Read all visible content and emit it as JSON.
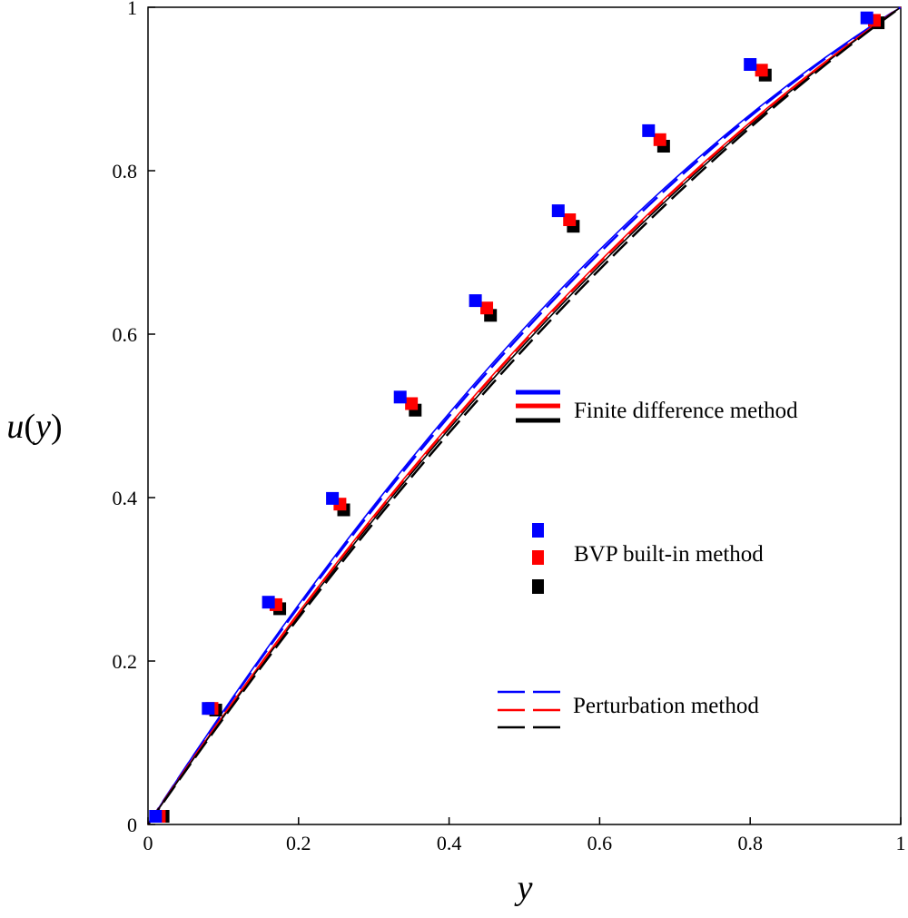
{
  "chart_data": {
    "type": "line",
    "xlabel": "y",
    "ylabel_func": "u",
    "ylabel_arg": "y",
    "xlim": [
      0,
      1
    ],
    "ylim": [
      0,
      1
    ],
    "xticks": [
      0,
      0.2,
      0.4,
      0.6,
      0.8,
      1
    ],
    "xtick_labels": [
      "0",
      "0.2",
      "0.4",
      "0.6",
      "0.8",
      "1"
    ],
    "yticks": [
      0,
      0.2,
      0.4,
      0.6,
      0.8,
      1
    ],
    "ytick_labels": [
      "0",
      "0.2",
      "0.4",
      "0.6",
      "0.8",
      "1"
    ],
    "colors": {
      "blue": "#0000ff",
      "red": "#ff0000",
      "black": "#000000"
    },
    "series": [
      {
        "name": "Finite difference method (blue)",
        "style": "solid",
        "color": "#0000ff",
        "curvature": 0.43
      },
      {
        "name": "Finite difference method (red)",
        "style": "solid",
        "color": "#ff0000",
        "curvature": 0.37
      },
      {
        "name": "Finite difference method (black)",
        "style": "solid",
        "color": "#000000",
        "curvature": 0.35
      },
      {
        "name": "Perturbation method (blue)",
        "style": "dashed",
        "color": "#0000ff",
        "curvature": 0.415
      },
      {
        "name": "Perturbation method (red)",
        "style": "dashed",
        "color": "#ff0000",
        "curvature": 0.365
      },
      {
        "name": "Perturbation method (black)",
        "style": "dashed",
        "color": "#000000",
        "curvature": 0.33
      },
      {
        "name": "BVP built-in method (blue)",
        "style": "markers",
        "color": "#0000ff",
        "x": [
          0.01,
          0.08,
          0.16,
          0.245,
          0.335,
          0.435,
          0.545,
          0.665,
          0.8,
          0.955
        ],
        "y": [
          0.01,
          0.142,
          0.272,
          0.399,
          0.523,
          0.641,
          0.751,
          0.849,
          0.93,
          0.987
        ]
      },
      {
        "name": "BVP built-in method (red)",
        "style": "markers",
        "color": "#ff0000",
        "x": [
          0.015,
          0.085,
          0.17,
          0.255,
          0.35,
          0.45,
          0.56,
          0.68,
          0.815,
          0.965
        ],
        "y": [
          0.01,
          0.142,
          0.269,
          0.392,
          0.515,
          0.632,
          0.74,
          0.838,
          0.923,
          0.984
        ]
      },
      {
        "name": "BVP built-in method (black)",
        "style": "markers",
        "color": "#000000",
        "x": [
          0.02,
          0.09,
          0.175,
          0.26,
          0.355,
          0.455,
          0.565,
          0.685,
          0.82,
          0.97
        ],
        "y": [
          0.01,
          0.14,
          0.264,
          0.385,
          0.507,
          0.623,
          0.732,
          0.83,
          0.917,
          0.981
        ]
      }
    ],
    "legend": [
      {
        "label": "Finite difference method",
        "style": "solid",
        "colors": [
          "#0000ff",
          "#ff0000",
          "#000000"
        ]
      },
      {
        "label": "BVP built-in method",
        "style": "markers",
        "colors": [
          "#0000ff",
          "#ff0000",
          "#000000"
        ]
      },
      {
        "label": "Perturbation method",
        "style": "dashed",
        "colors": [
          "#0000ff",
          "#ff0000",
          "#000000"
        ]
      }
    ]
  }
}
